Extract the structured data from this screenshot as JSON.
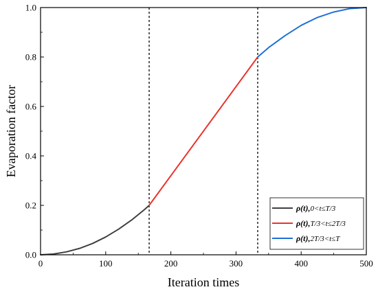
{
  "chart_data": {
    "type": "line",
    "xlabel": "Iteration times",
    "ylabel": "Evaporation factor",
    "xlim": [
      0,
      500
    ],
    "ylim": [
      0.0,
      1.0
    ],
    "xticks": [
      0,
      100,
      200,
      300,
      400,
      500
    ],
    "xtick_labels": [
      "0",
      "100",
      "200",
      "300",
      "400",
      "500"
    ],
    "yticks": [
      0.0,
      0.2,
      0.4,
      0.6,
      0.8,
      1.0
    ],
    "ytick_labels": [
      "0.0",
      "0.2",
      "0.4",
      "0.6",
      "0.8",
      "1.0"
    ],
    "grid": false,
    "legend_position": "bottom-right",
    "vertical_lines": [
      {
        "x": 166.7,
        "style": "dashed",
        "color": "#000000"
      },
      {
        "x": 333.3,
        "style": "dashed",
        "color": "#000000"
      }
    ],
    "series": [
      {
        "name": "ρ(t),0<t≤T/3",
        "legend_rho": "ρ(t),",
        "legend_sub": "0<t≤T/3",
        "color": "#3f3f3f",
        "x": [
          0,
          20,
          40,
          60,
          80,
          100,
          120,
          140,
          160,
          166.7
        ],
        "y": [
          0.0,
          0.003,
          0.012,
          0.026,
          0.046,
          0.072,
          0.104,
          0.141,
          0.184,
          0.2
        ]
      },
      {
        "name": "ρ(t),T/3<t≤2T/3",
        "legend_rho": "ρ(t),",
        "legend_sub": "T/3<t≤2T/3",
        "color": "#e8332c",
        "x": [
          166.7,
          333.3
        ],
        "y": [
          0.2,
          0.8
        ]
      },
      {
        "name": "ρ(t),2T/3<t≤T",
        "legend_rho": "ρ(t),",
        "legend_sub": "2T/3<t≤T",
        "color": "#1f6fd6",
        "x": [
          333.3,
          350,
          375,
          400,
          425,
          450,
          475,
          500
        ],
        "y": [
          0.8,
          0.838,
          0.886,
          0.928,
          0.96,
          0.982,
          0.996,
          1.0
        ]
      }
    ]
  }
}
